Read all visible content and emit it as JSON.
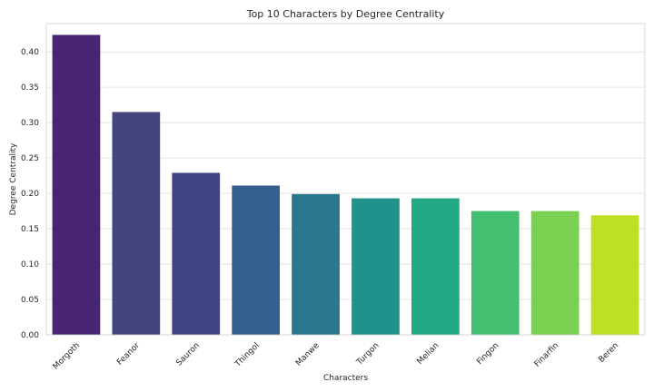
{
  "chart_data": {
    "type": "bar",
    "title": "Top 10 Characters by Degree Centrality",
    "xlabel": "Characters",
    "ylabel": "Degree Centrality",
    "categories": [
      "Morgoth",
      "Feanor",
      "Sauron",
      "Thingol",
      "Manwe",
      "Turgon",
      "Melian",
      "Fingon",
      "Finarfin",
      "Beren"
    ],
    "values": [
      0.424,
      0.315,
      0.229,
      0.211,
      0.199,
      0.193,
      0.193,
      0.175,
      0.175,
      0.169
    ],
    "colors": [
      "#482475",
      "#45457d",
      "#414487",
      "#355f8d",
      "#2a788e",
      "#21918c",
      "#22a884",
      "#44bf70",
      "#7ad151",
      "#bddf26"
    ],
    "ylim": [
      0,
      0.44
    ],
    "yticks": [
      "0.00",
      "0.05",
      "0.10",
      "0.15",
      "0.20",
      "0.25",
      "0.30",
      "0.35",
      "0.40"
    ],
    "grid": true,
    "legend": "none"
  }
}
